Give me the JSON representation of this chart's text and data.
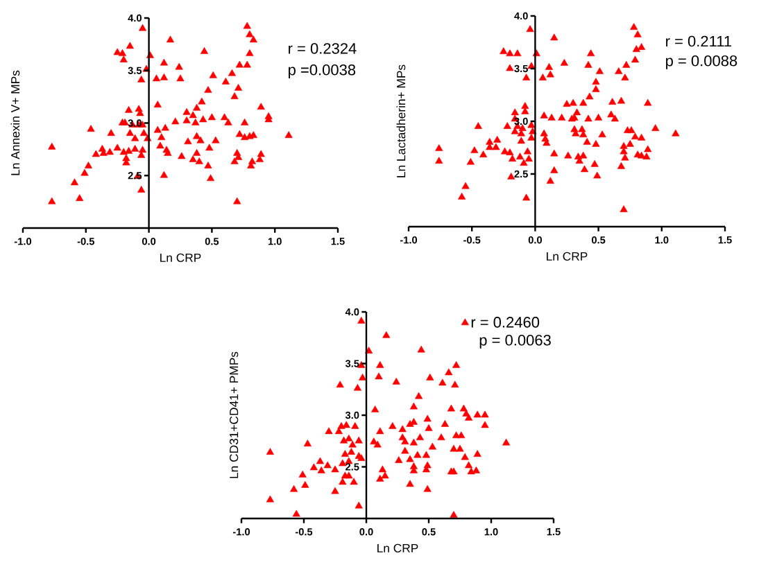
{
  "chart_data": [
    {
      "type": "scatter",
      "xlabel": "Ln CRP",
      "ylabel": "Ln Annexin V+ MPs",
      "annotations": [
        "r = 0.2324",
        "p =0.0038"
      ],
      "marker": "triangle",
      "xlim": [
        -1,
        1.5
      ],
      "ylim": [
        2,
        4
      ],
      "xticks": [
        {
          "value": -1,
          "label": "-1.0"
        },
        -0.5,
        {
          "value": 0,
          "label": "0.0"
        },
        0.5,
        {
          "value": 1,
          "label": "1.0"
        },
        1.5
      ],
      "yticks": [
        {
          "value": 2.5,
          "label": "2.5"
        },
        {
          "value": 3,
          "label": "3.0"
        },
        {
          "value": 3.5,
          "label": "3.5"
        },
        {
          "value": 4,
          "label": "4.0"
        }
      ],
      "series": [
        {
          "color": "#ff0000",
          "x": [
            -0.77,
            -0.77,
            -0.55,
            -0.59,
            -0.51,
            -0.48,
            -0.46,
            -0.42,
            -0.37,
            -0.36,
            -0.31,
            -0.3,
            -0.25,
            -0.25,
            -0.21,
            -0.2,
            -0.15,
            -0.21,
            -0.19,
            -0.16,
            -0.08,
            -0.07,
            -0.2,
            -0.18,
            -0.18,
            -0.16,
            -0.15,
            -0.11,
            -0.11,
            -0.13,
            -0.08,
            -0.05,
            -0.04,
            -0.01,
            -0.05,
            -0.06,
            -0.09,
            -0.06,
            -0.06,
            -0.02,
            -0.05,
            0.01,
            0.06,
            0.12,
            0.12,
            0.17,
            0.24,
            0.25,
            0.07,
            0.07,
            0.1,
            0.09,
            0.13,
            0.14,
            0.15,
            0.12,
            0.21,
            0.26,
            0.78,
            0.8,
            0.83,
            0.44,
            0.8,
            0.72,
            0.78,
            0.66,
            0.51,
            0.61,
            0.71,
            0.47,
            0.68,
            0.42,
            0.38,
            0.3,
            0.35,
            0.3,
            0.37,
            0.43,
            0.5,
            0.6,
            0.63,
            0.76,
            0.89,
            0.95,
            0.95,
            1.11,
            0.72,
            0.76,
            0.8,
            0.83,
            0.31,
            0.38,
            0.41,
            0.53,
            0.48,
            0.35,
            0.38,
            0.4,
            0.47,
            0.49,
            0.7,
            0.71,
            0.68,
            0.82,
            0.81,
            0.89,
            0.88,
            0.7
          ],
          "values": [
            2.77,
            2.25,
            2.28,
            2.43,
            2.52,
            2.59,
            2.94,
            2.7,
            2.75,
            2.71,
            2.72,
            2.9,
            2.76,
            3.67,
            3.66,
            3.6,
            3.73,
            3.0,
            3.0,
            3.12,
            3.13,
            3.09,
            2.72,
            2.66,
            2.62,
            2.73,
            2.9,
            2.75,
            2.85,
            2.98,
            2.98,
            2.98,
            2.9,
            2.85,
            2.74,
            2.69,
            2.49,
            2.36,
            3.41,
            3.51,
            3.9,
            3.64,
            3.42,
            3.43,
            3.57,
            3.79,
            3.53,
            3.42,
            3.17,
            2.93,
            2.86,
            2.78,
            2.95,
            2.74,
            2.71,
            2.5,
            3.01,
            2.68,
            3.92,
            3.84,
            3.79,
            3.68,
            3.66,
            3.55,
            3.55,
            3.47,
            3.45,
            3.39,
            3.33,
            3.31,
            3.25,
            3.2,
            3.14,
            3.1,
            3.07,
            3.02,
            3.0,
            3.03,
            3.05,
            3.05,
            3.0,
            3.0,
            3.15,
            3.06,
            3.03,
            2.88,
            2.89,
            2.86,
            2.87,
            2.88,
            2.82,
            2.87,
            2.83,
            2.83,
            2.76,
            2.65,
            2.71,
            2.63,
            2.59,
            2.47,
            2.71,
            2.67,
            2.63,
            2.63,
            2.59,
            2.7,
            2.65,
            2.25
          ]
        }
      ]
    },
    {
      "type": "scatter",
      "xlabel": "Ln CRP",
      "ylabel": "Ln Lactadherin+ MPs",
      "annotations": [
        "r = 0.2111",
        "p = 0.0088"
      ],
      "marker": "triangle",
      "xlim": [
        -1,
        1.5
      ],
      "ylim": [
        2,
        4
      ],
      "xticks": [
        {
          "value": -1,
          "label": "-1.0"
        },
        -0.5,
        {
          "value": 0,
          "label": "0.0"
        },
        0.5,
        {
          "value": 1,
          "label": "1.0"
        },
        1.5
      ],
      "yticks": [
        {
          "value": 2.5,
          "label": "2.5"
        },
        {
          "value": 3,
          "label": "3.0"
        },
        {
          "value": 3.5,
          "label": "3.5"
        },
        {
          "value": 4,
          "label": "4.0"
        }
      ],
      "series": [
        {
          "color": "#ff0000",
          "x": [
            -0.76,
            -0.76,
            -0.58,
            -0.55,
            -0.51,
            -0.48,
            -0.45,
            -0.41,
            -0.36,
            -0.36,
            -0.31,
            -0.3,
            -0.25,
            -0.2,
            -0.14,
            -0.2,
            -0.24,
            -0.22,
            -0.2,
            -0.18,
            -0.16,
            -0.16,
            -0.16,
            -0.14,
            -0.11,
            -0.1,
            -0.11,
            -0.12,
            -0.08,
            -0.08,
            -0.09,
            -0.06,
            -0.05,
            -0.19,
            -0.07,
            -0.04,
            -0.03,
            -0.03,
            -0.03,
            -0.02,
            -0.07,
            0.01,
            0.15,
            0.06,
            0.11,
            0.12,
            0.07,
            0.13,
            0.07,
            0.08,
            0.09,
            0.15,
            0.15,
            0.12,
            0.78,
            0.81,
            0.84,
            0.8,
            0.79,
            0.72,
            0.66,
            0.71,
            0.44,
            0.42,
            0.51,
            0.23,
            0.48,
            0.48,
            0.43,
            0.38,
            0.25,
            0.3,
            0.61,
            0.68,
            0.89,
            0.33,
            0.31,
            0.29,
            0.21,
            0.42,
            0.5,
            0.6,
            0.63,
            0.95,
            1.11,
            0.31,
            0.32,
            0.37,
            0.38,
            0.41,
            0.53,
            0.48,
            0.73,
            0.76,
            0.79,
            0.84,
            0.75,
            0.7,
            0.7,
            0.71,
            0.81,
            0.84,
            0.88,
            0.89,
            0.26,
            0.34,
            0.38,
            0.35,
            0.39,
            0.47,
            0.49,
            0.68,
            0.7
          ],
          "values": [
            2.74,
            2.62,
            2.28,
            2.38,
            2.61,
            2.72,
            2.95,
            2.68,
            2.8,
            2.75,
            2.75,
            2.82,
            3.66,
            3.64,
            3.64,
            3.5,
            2.71,
            2.95,
            2.7,
            2.64,
            3.08,
            3.02,
            2.9,
            2.95,
            2.88,
            2.93,
            2.81,
            2.66,
            3.14,
            3.09,
            2.6,
            2.71,
            2.64,
            2.47,
            3.41,
            3.87,
            3.52,
            2.96,
            2.84,
            2.9,
            2.27,
            3.64,
            3.79,
            3.41,
            3.51,
            3.44,
            3.05,
            3.03,
            2.88,
            2.83,
            2.79,
            2.69,
            2.53,
            2.43,
            3.89,
            3.82,
            3.7,
            3.68,
            3.58,
            3.53,
            3.47,
            3.41,
            3.64,
            3.53,
            3.47,
            3.55,
            3.37,
            3.3,
            3.23,
            3.17,
            3.16,
            3.17,
            3.18,
            3.19,
            3.17,
            3.08,
            3.03,
            3.02,
            3.03,
            3.02,
            3.03,
            3.06,
            3.02,
            2.93,
            2.88,
            2.92,
            2.88,
            2.92,
            2.87,
            2.8,
            2.87,
            2.78,
            2.91,
            2.91,
            2.85,
            2.84,
            2.78,
            2.76,
            2.71,
            2.65,
            2.68,
            2.67,
            2.66,
            2.73,
            2.67,
            2.66,
            2.67,
            2.62,
            2.54,
            2.59,
            2.48,
            2.57,
            2.16
          ]
        }
      ]
    },
    {
      "type": "scatter",
      "xlabel": "Ln CRP",
      "ylabel": "Ln CD31+CD41+ PMPs",
      "annotations": [
        "p = 0.0063"
      ],
      "marker": "triangle",
      "legend": "top right",
      "xlim": [
        -1,
        1.5
      ],
      "ylim": [
        2,
        4
      ],
      "xticks": [
        {
          "value": -1,
          "label": "-1.0"
        },
        -0.5,
        {
          "value": 0,
          "label": "0.0"
        },
        0.5,
        {
          "value": 1,
          "label": "1.0"
        },
        1.5
      ],
      "yticks": [
        {
          "value": 2.5,
          "label": "2.5"
        },
        {
          "value": 3,
          "label": "3.0"
        },
        {
          "value": 3.5,
          "label": "3.5"
        },
        {
          "value": 4,
          "label": "4.0"
        }
      ],
      "series": [
        {
          "name": "r = 0.2460",
          "color": "#ff0000",
          "x": [
            -0.77,
            -0.77,
            -0.56,
            -0.58,
            -0.51,
            -0.49,
            -0.47,
            -0.42,
            -0.37,
            -0.36,
            -0.31,
            -0.3,
            -0.25,
            -0.25,
            -0.21,
            -0.22,
            -0.2,
            -0.16,
            -0.18,
            -0.14,
            -0.17,
            -0.19,
            -0.14,
            -0.19,
            -0.14,
            -0.17,
            -0.12,
            -0.11,
            -0.09,
            -0.06,
            -0.1,
            -0.06,
            -0.04,
            -0.07,
            -0.04,
            -0.03,
            -0.04,
            0.02,
            -0.06,
            0.07,
            0.06,
            0.09,
            0.11,
            0.1,
            0.11,
            0.11,
            0.13,
            0.16,
            0.24,
            0.44,
            0.51,
            0.61,
            0.66,
            0.72,
            0.71,
            0.42,
            0.38,
            0.68,
            0.78,
            0.8,
            0.82,
            0.89,
            0.95,
            0.95,
            0.49,
            0.5,
            0.63,
            0.21,
            0.29,
            0.35,
            0.38,
            0.72,
            0.76,
            1.12,
            0.29,
            0.31,
            0.38,
            0.43,
            0.6,
            0.53,
            0.31,
            0.26,
            0.35,
            0.41,
            0.48,
            0.7,
            0.75,
            0.79,
            0.89,
            0.82,
            0.38,
            0.38,
            0.49,
            0.48,
            0.15,
            0.68,
            0.7,
            0.84,
            0.88,
            0.35,
            0.49,
            0.7
          ],
          "values": [
            2.64,
            2.18,
            2.04,
            2.28,
            2.42,
            2.32,
            2.72,
            2.49,
            2.55,
            2.46,
            2.51,
            2.84,
            2.47,
            2.26,
            3.29,
            2.84,
            2.89,
            2.9,
            2.75,
            2.77,
            2.62,
            2.53,
            2.55,
            2.35,
            2.41,
            2.41,
            2.64,
            2.71,
            2.89,
            2.75,
            2.35,
            2.6,
            2.58,
            3.26,
            3.48,
            3.36,
            3.91,
            3.62,
            2.12,
            3.05,
            2.74,
            2.71,
            3.48,
            3.37,
            2.84,
            2.38,
            2.47,
            3.77,
            3.32,
            3.63,
            3.36,
            3.31,
            3.41,
            3.48,
            3.29,
            3.18,
            3.08,
            3.06,
            3.06,
            3.01,
            2.97,
            3.0,
            3.0,
            2.9,
            2.96,
            2.87,
            2.91,
            2.89,
            2.86,
            2.91,
            2.93,
            2.8,
            2.8,
            2.73,
            2.78,
            2.74,
            2.73,
            2.78,
            2.78,
            2.69,
            2.65,
            2.56,
            2.57,
            2.61,
            2.61,
            2.67,
            2.67,
            2.59,
            2.62,
            2.51,
            2.5,
            2.46,
            2.51,
            2.47,
            2.41,
            2.45,
            2.45,
            2.45,
            2.46,
            2.33,
            2.28,
            2.03
          ]
        }
      ]
    }
  ]
}
